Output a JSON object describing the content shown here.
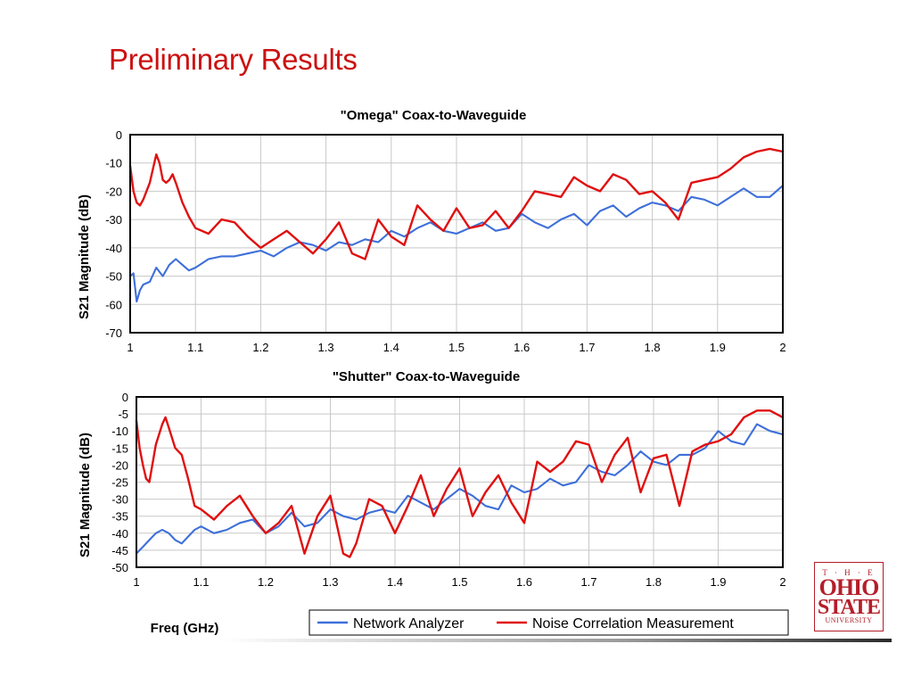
{
  "slide": {
    "title": "Preliminary Results"
  },
  "logo": {
    "line1": "T · H · E",
    "line2": "OHIO",
    "line3": "STATE",
    "line4": "UNIVERSITY"
  },
  "colors": {
    "network_analyzer": "#3d6fd9",
    "noise_correlation": "#e01010",
    "title": "#cc1111"
  },
  "chart_data": [
    {
      "type": "line",
      "title": "\"Omega\" Coax-to-Waveguide",
      "ylabel": "S21 Magnitude (dB)",
      "xlabel": "",
      "xlim": [
        1,
        2
      ],
      "ylim": [
        -70,
        0
      ],
      "xticks": [
        "1",
        "1.1",
        "1.2",
        "1.3",
        "1.4",
        "1.5",
        "1.6",
        "1.7",
        "1.8",
        "1.9",
        "2"
      ],
      "yticks": [
        "0",
        "-10",
        "-20",
        "-30",
        "-40",
        "-50",
        "-60",
        "-70"
      ],
      "grid": true,
      "series": [
        {
          "name": "Network Analyzer",
          "x": [
            1.0,
            1.005,
            1.01,
            1.015,
            1.02,
            1.03,
            1.04,
            1.05,
            1.06,
            1.07,
            1.08,
            1.09,
            1.1,
            1.12,
            1.14,
            1.16,
            1.18,
            1.2,
            1.22,
            1.24,
            1.26,
            1.28,
            1.3,
            1.32,
            1.34,
            1.36,
            1.38,
            1.4,
            1.42,
            1.44,
            1.46,
            1.48,
            1.5,
            1.52,
            1.54,
            1.56,
            1.58,
            1.6,
            1.62,
            1.64,
            1.66,
            1.68,
            1.7,
            1.72,
            1.74,
            1.76,
            1.78,
            1.8,
            1.82,
            1.84,
            1.86,
            1.88,
            1.9,
            1.92,
            1.94,
            1.96,
            1.98,
            2.0
          ],
          "y": [
            -50,
            -49,
            -59,
            -55,
            -53,
            -52,
            -47,
            -50,
            -46,
            -44,
            -46,
            -48,
            -47,
            -44,
            -43,
            -43,
            -42,
            -41,
            -43,
            -40,
            -38,
            -39,
            -41,
            -38,
            -39,
            -37,
            -38,
            -34,
            -36,
            -33,
            -31,
            -34,
            -35,
            -33,
            -31,
            -34,
            -33,
            -28,
            -31,
            -33,
            -30,
            -28,
            -32,
            -27,
            -25,
            -29,
            -26,
            -24,
            -25,
            -27,
            -22,
            -23,
            -25,
            -22,
            -19,
            -22,
            -22,
            -18
          ]
        },
        {
          "name": "Noise Correlation Measurement",
          "x": [
            1.0,
            1.005,
            1.01,
            1.015,
            1.02,
            1.03,
            1.035,
            1.04,
            1.045,
            1.05,
            1.055,
            1.06,
            1.065,
            1.07,
            1.08,
            1.09,
            1.1,
            1.12,
            1.14,
            1.16,
            1.18,
            1.2,
            1.22,
            1.24,
            1.26,
            1.28,
            1.3,
            1.32,
            1.34,
            1.36,
            1.38,
            1.4,
            1.42,
            1.44,
            1.46,
            1.48,
            1.5,
            1.52,
            1.54,
            1.56,
            1.58,
            1.6,
            1.62,
            1.64,
            1.66,
            1.68,
            1.7,
            1.72,
            1.74,
            1.76,
            1.78,
            1.8,
            1.82,
            1.84,
            1.86,
            1.88,
            1.9,
            1.92,
            1.94,
            1.96,
            1.98,
            2.0
          ],
          "y": [
            -11,
            -20,
            -24,
            -25,
            -23,
            -17,
            -12,
            -7,
            -10,
            -16,
            -17,
            -16,
            -14,
            -17,
            -24,
            -29,
            -33,
            -35,
            -30,
            -31,
            -36,
            -40,
            -37,
            -34,
            -38,
            -42,
            -37,
            -31,
            -42,
            -44,
            -30,
            -36,
            -39,
            -25,
            -30,
            -34,
            -26,
            -33,
            -32,
            -27,
            -33,
            -27,
            -20,
            -21,
            -22,
            -15,
            -18,
            -20,
            -14,
            -16,
            -21,
            -20,
            -24,
            -30,
            -17,
            -16,
            -15,
            -12,
            -8,
            -6,
            -5,
            -6
          ]
        }
      ]
    },
    {
      "type": "line",
      "title": "\"Shutter\" Coax-to-Waveguide",
      "ylabel": "S21 Magnitude (dB)",
      "xlabel": "Freq (GHz)",
      "xlim": [
        1,
        2
      ],
      "ylim": [
        -50,
        0
      ],
      "xticks": [
        "1",
        "1.1",
        "1.2",
        "1.3",
        "1.4",
        "1.5",
        "1.6",
        "1.7",
        "1.8",
        "1.9",
        "2"
      ],
      "yticks": [
        "0",
        "-5",
        "-10",
        "-15",
        "-20",
        "-25",
        "-30",
        "-35",
        "-40",
        "-45",
        "-50"
      ],
      "grid": true,
      "legend": {
        "placement": "bottom-right",
        "entries": [
          "Network Analyzer",
          "Noise Correlation Measurement"
        ]
      },
      "series": [
        {
          "name": "Network Analyzer",
          "x": [
            1.0,
            1.005,
            1.01,
            1.02,
            1.03,
            1.04,
            1.05,
            1.06,
            1.07,
            1.08,
            1.09,
            1.1,
            1.12,
            1.14,
            1.16,
            1.18,
            1.2,
            1.22,
            1.24,
            1.26,
            1.28,
            1.3,
            1.32,
            1.34,
            1.36,
            1.38,
            1.4,
            1.42,
            1.44,
            1.46,
            1.48,
            1.5,
            1.52,
            1.54,
            1.56,
            1.58,
            1.6,
            1.62,
            1.64,
            1.66,
            1.68,
            1.7,
            1.72,
            1.74,
            1.76,
            1.78,
            1.8,
            1.82,
            1.84,
            1.86,
            1.88,
            1.9,
            1.92,
            1.94,
            1.96,
            1.98,
            2.0
          ],
          "y": [
            -46,
            -45,
            -44,
            -42,
            -40,
            -39,
            -40,
            -42,
            -43,
            -41,
            -39,
            -38,
            -40,
            -39,
            -37,
            -36,
            -40,
            -38,
            -34,
            -38,
            -37,
            -33,
            -35,
            -36,
            -34,
            -33,
            -34,
            -29,
            -31,
            -33,
            -30,
            -27,
            -29,
            -32,
            -33,
            -26,
            -28,
            -27,
            -24,
            -26,
            -25,
            -20,
            -22,
            -23,
            -20,
            -16,
            -19,
            -20,
            -17,
            -17,
            -15,
            -10,
            -13,
            -14,
            -8,
            -10,
            -11
          ]
        },
        {
          "name": "Noise Correlation Measurement",
          "x": [
            1.0,
            1.005,
            1.01,
            1.015,
            1.02,
            1.03,
            1.04,
            1.045,
            1.05,
            1.055,
            1.06,
            1.07,
            1.08,
            1.09,
            1.1,
            1.12,
            1.14,
            1.16,
            1.18,
            1.2,
            1.22,
            1.24,
            1.26,
            1.28,
            1.3,
            1.32,
            1.33,
            1.34,
            1.36,
            1.38,
            1.4,
            1.42,
            1.44,
            1.46,
            1.48,
            1.5,
            1.52,
            1.54,
            1.56,
            1.58,
            1.6,
            1.62,
            1.64,
            1.66,
            1.68,
            1.7,
            1.72,
            1.74,
            1.76,
            1.78,
            1.8,
            1.82,
            1.84,
            1.86,
            1.88,
            1.9,
            1.92,
            1.94,
            1.96,
            1.98,
            2.0
          ],
          "y": [
            -7,
            -15,
            -20,
            -24,
            -25,
            -14,
            -8,
            -6,
            -9,
            -12,
            -15,
            -17,
            -24,
            -32,
            -33,
            -36,
            -32,
            -29,
            -35,
            -40,
            -37,
            -32,
            -46,
            -35,
            -29,
            -46,
            -47,
            -43,
            -30,
            -32,
            -40,
            -32,
            -23,
            -35,
            -27,
            -21,
            -35,
            -28,
            -23,
            -31,
            -37,
            -19,
            -22,
            -19,
            -13,
            -14,
            -25,
            -17,
            -12,
            -28,
            -18,
            -17,
            -32,
            -16,
            -14,
            -13,
            -11,
            -6,
            -4,
            -4,
            -6
          ]
        }
      ]
    }
  ]
}
